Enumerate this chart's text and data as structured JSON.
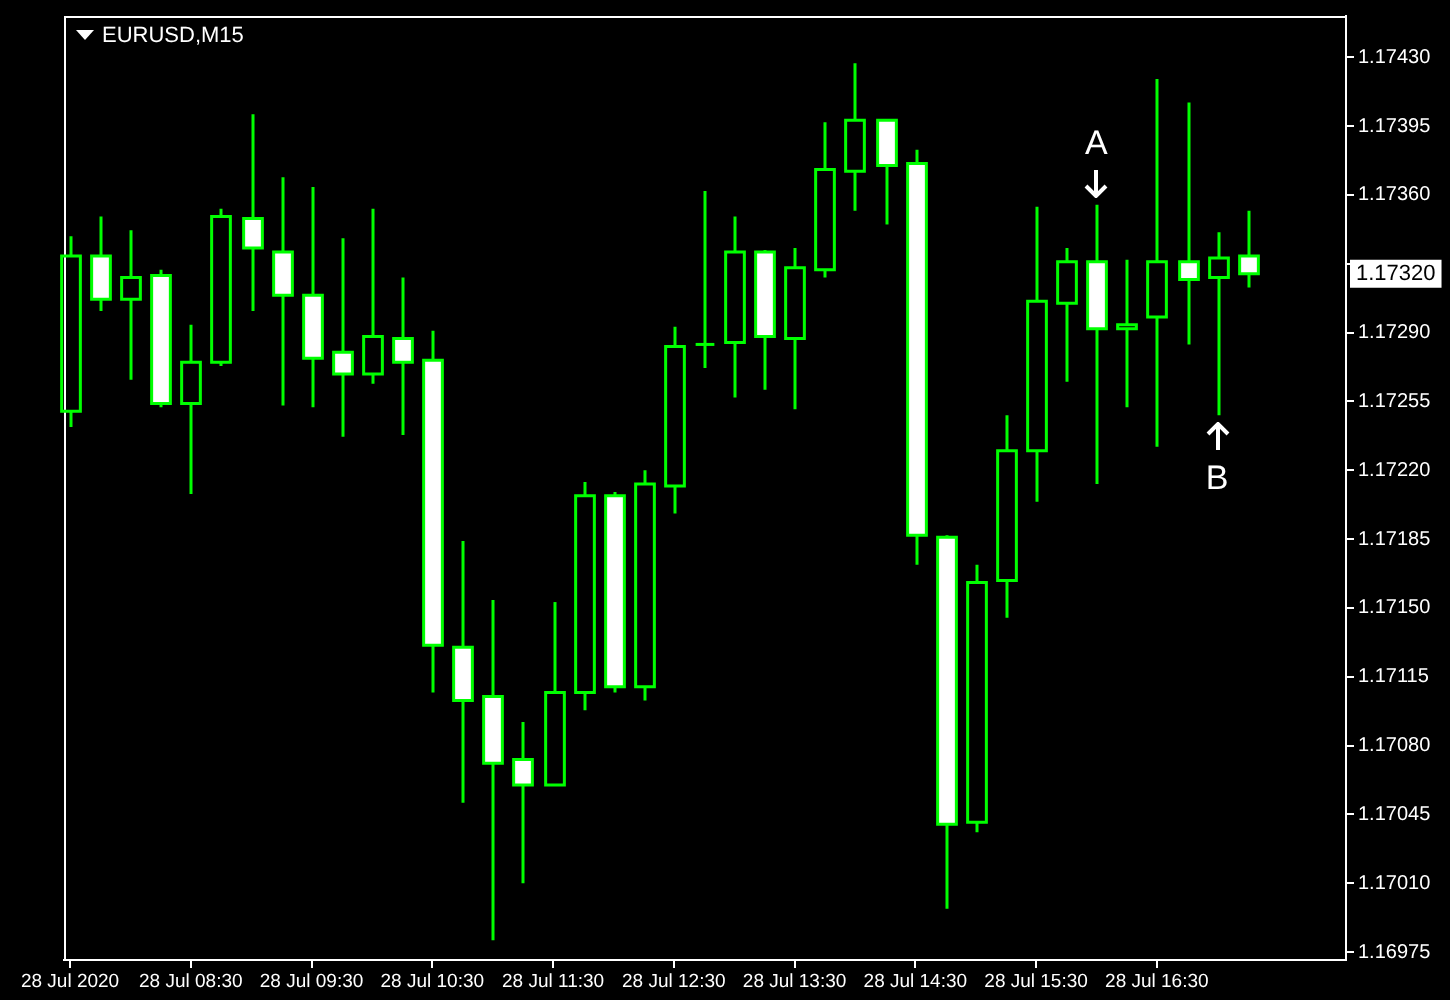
{
  "chart_data": {
    "type": "candlestick",
    "title": "EURUSD,M15",
    "color": "#00ff00",
    "x": [
      "2020-07-28T07:30",
      "2020-07-28T07:45",
      "2020-07-28T08:00",
      "2020-07-28T08:15",
      "2020-07-28T08:30",
      "2020-07-28T08:45",
      "2020-07-28T09:00",
      "2020-07-28T09:15",
      "2020-07-28T09:30",
      "2020-07-28T09:45",
      "2020-07-28T10:00",
      "2020-07-28T10:15",
      "2020-07-28T10:30",
      "2020-07-28T10:45",
      "2020-07-28T11:00",
      "2020-07-28T11:15",
      "2020-07-28T11:30",
      "2020-07-28T11:45",
      "2020-07-28T12:00",
      "2020-07-28T12:15",
      "2020-07-28T12:30",
      "2020-07-28T12:45",
      "2020-07-28T13:00",
      "2020-07-28T13:15",
      "2020-07-28T13:30",
      "2020-07-28T13:45",
      "2020-07-28T14:00",
      "2020-07-28T14:15",
      "2020-07-28T14:30",
      "2020-07-28T14:45",
      "2020-07-28T15:00",
      "2020-07-28T15:15",
      "2020-07-28T15:30",
      "2020-07-28T15:45",
      "2020-07-28T16:00",
      "2020-07-28T16:15",
      "2020-07-28T16:30",
      "2020-07-28T16:45",
      "2020-07-28T17:00",
      "2020-07-28T17:15"
    ],
    "ohlc": [
      [
        1.1725,
        1.17339,
        1.17242,
        1.17329
      ],
      [
        1.17329,
        1.17349,
        1.17301,
        1.17307
      ],
      [
        1.17307,
        1.17342,
        1.17266,
        1.17318
      ],
      [
        1.17319,
        1.17322,
        1.17252,
        1.17254
      ],
      [
        1.17254,
        1.17294,
        1.17208,
        1.17275
      ],
      [
        1.17275,
        1.17353,
        1.17273,
        1.17349
      ],
      [
        1.17348,
        1.17401,
        1.17301,
        1.17333
      ],
      [
        1.17331,
        1.17369,
        1.17253,
        1.17309
      ],
      [
        1.17309,
        1.17364,
        1.17252,
        1.17277
      ],
      [
        1.1728,
        1.17338,
        1.17237,
        1.17269
      ],
      [
        1.17269,
        1.17353,
        1.17264,
        1.17288
      ],
      [
        1.17287,
        1.17318,
        1.17238,
        1.17275
      ],
      [
        1.17276,
        1.17291,
        1.17107,
        1.17131
      ],
      [
        1.1713,
        1.17184,
        1.17051,
        1.17103
      ],
      [
        1.17105,
        1.17154,
        1.16981,
        1.17071
      ],
      [
        1.17073,
        1.17092,
        1.1701,
        1.1706
      ],
      [
        1.1706,
        1.17153,
        1.1706,
        1.17107
      ],
      [
        1.17107,
        1.17214,
        1.17098,
        1.17207
      ],
      [
        1.17207,
        1.17209,
        1.17107,
        1.1711
      ],
      [
        1.1711,
        1.1722,
        1.17103,
        1.17213
      ],
      [
        1.17212,
        1.17293,
        1.17198,
        1.17283
      ],
      [
        1.17284,
        1.17362,
        1.17272,
        1.17284
      ],
      [
        1.17285,
        1.17349,
        1.17257,
        1.17331
      ],
      [
        1.17331,
        1.17332,
        1.17261,
        1.17288
      ],
      [
        1.17287,
        1.17333,
        1.17251,
        1.17323
      ],
      [
        1.17322,
        1.17397,
        1.17318,
        1.17373
      ],
      [
        1.17372,
        1.17427,
        1.17352,
        1.17398
      ],
      [
        1.17398,
        1.17398,
        1.17345,
        1.17375
      ],
      [
        1.17376,
        1.17383,
        1.17172,
        1.17187
      ],
      [
        1.17186,
        1.17187,
        1.16997,
        1.1704
      ],
      [
        1.17041,
        1.17172,
        1.17036,
        1.17163
      ],
      [
        1.17164,
        1.17248,
        1.17145,
        1.1723
      ],
      [
        1.1723,
        1.17354,
        1.17204,
        1.17306
      ],
      [
        1.17305,
        1.17333,
        1.17265,
        1.17326
      ],
      [
        1.17326,
        1.17355,
        1.17213,
        1.17292
      ],
      [
        1.17292,
        1.17327,
        1.17252,
        1.17294
      ],
      [
        1.17298,
        1.17419,
        1.17232,
        1.17326
      ],
      [
        1.17326,
        1.17407,
        1.17284,
        1.17317
      ],
      [
        1.17318,
        1.17341,
        1.17248,
        1.17328
      ],
      [
        1.17329,
        1.17352,
        1.17313,
        1.1732
      ]
    ],
    "xlim": [
      "2020-07-28T07:27",
      "2020-07-28T18:04"
    ],
    "xticks": [
      {
        "value": "2020-07-28T07:30",
        "label": "28 Jul 2020"
      },
      {
        "value": "2020-07-28T08:30",
        "label": "28 Jul 08:30"
      },
      {
        "value": "2020-07-28T09:30",
        "label": "28 Jul 09:30"
      },
      {
        "value": "2020-07-28T10:30",
        "label": "28 Jul 10:30"
      },
      {
        "value": "2020-07-28T11:30",
        "label": "28 Jul 11:30"
      },
      {
        "value": "2020-07-28T12:30",
        "label": "28 Jul 12:30"
      },
      {
        "value": "2020-07-28T13:30",
        "label": "28 Jul 13:30"
      },
      {
        "value": "2020-07-28T14:30",
        "label": "28 Jul 14:30"
      },
      {
        "value": "2020-07-28T15:30",
        "label": "28 Jul 15:30"
      },
      {
        "value": "2020-07-28T16:30",
        "label": "28 Jul 16:30"
      }
    ],
    "ylim": [
      1.16971,
      1.17451
    ],
    "yticks": [
      {
        "value": 1.1743,
        "label": "1.17430"
      },
      1.17395,
      {
        "value": 1.1736,
        "label": "1.17360"
      },
      {
        "value": 1.17325,
        "label": null
      },
      {
        "value": 1.1729,
        "label": "1.17290"
      },
      1.17255,
      {
        "value": 1.1722,
        "label": "1.17220"
      },
      1.17185,
      {
        "value": 1.1715,
        "label": "1.17150"
      },
      1.17115,
      {
        "value": 1.1708,
        "label": "1.17080"
      },
      1.17045,
      {
        "value": 1.1701,
        "label": "1.17010"
      },
      1.16975
    ],
    "colors": [
      "#00ff00",
      "#ffffff",
      "#00ff00",
      "#ffffff",
      "#00ff00",
      "#00ff00",
      "#ffffff",
      "#ffffff",
      "#ffffff",
      "#ffffff",
      "#00ff00",
      "#ffffff",
      "#ffffff",
      "#ffffff",
      "#ffffff",
      "#ffffff",
      "#00ff00",
      "#00ff00",
      "#ffffff",
      "#00ff00",
      "#00ff00",
      "#00ff00",
      "#00ff00",
      "#ffffff",
      "#00ff00",
      "#00ff00",
      "#00ff00",
      "#ffffff",
      "#ffffff",
      "#ffffff",
      "#00ff00",
      "#00ff00",
      "#00ff00",
      "#00ff00",
      "#ffffff",
      "#00ff00",
      "#00ff00",
      "#ffffff",
      "#00ff00",
      "#ffffff"
    ],
    "annotations": [
      "1.17320",
      {
        "text": "A",
        "x": "2020-07-28T16:00",
        "y": 1.17355
      },
      {
        "text": "B",
        "x": "2020-07-28T17:00",
        "y": 1.17248
      }
    ],
    "legend": false,
    "grid": false
  }
}
